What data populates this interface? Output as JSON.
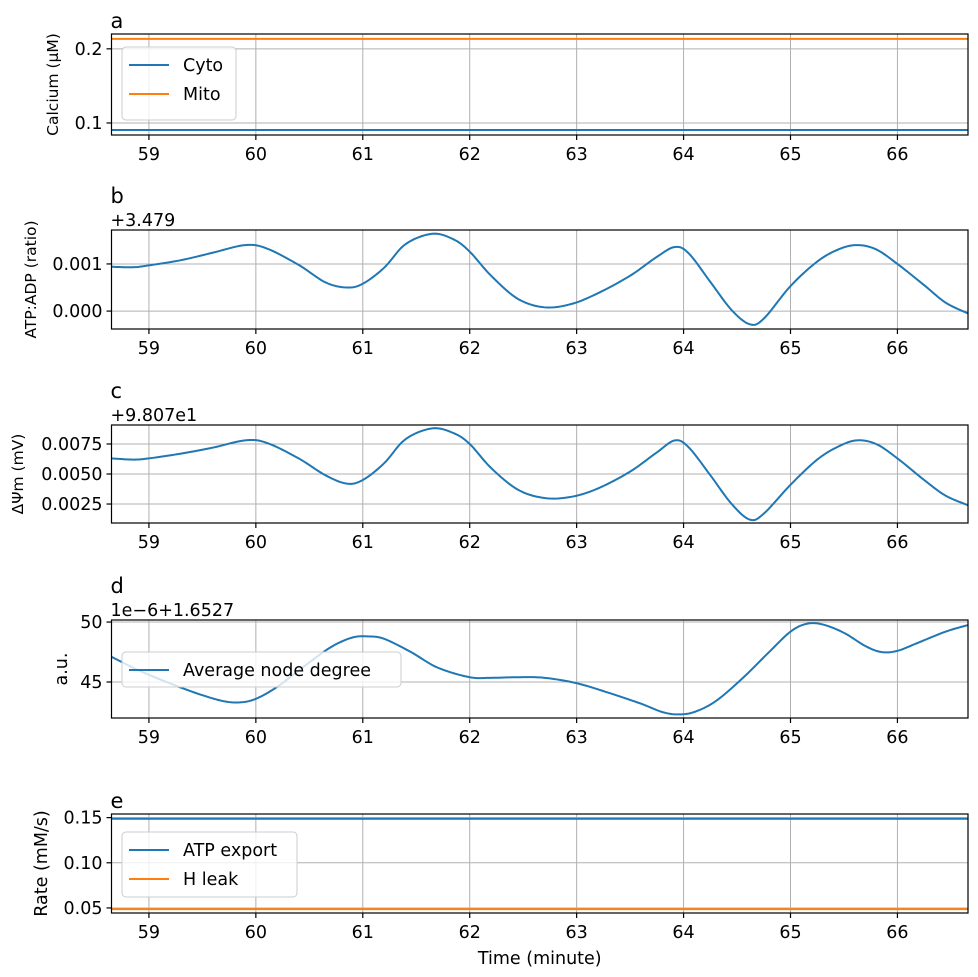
{
  "chart_data": [
    {
      "id": "a",
      "type": "line",
      "title": "a",
      "offset_text": "",
      "xlabel": "",
      "ylabel": "Calcium (μM)",
      "xlim": [
        58.65,
        66.66
      ],
      "ylim": [
        0.0838,
        0.22
      ],
      "xticks": [
        59,
        60,
        61,
        62,
        63,
        64,
        65,
        66
      ],
      "xtick_labels": [
        "59",
        "60",
        "61",
        "62",
        "63",
        "64",
        "65",
        "66"
      ],
      "yticks": [
        0.1,
        0.2
      ],
      "ytick_labels": [
        "0.1",
        "0.2"
      ],
      "grid": true,
      "legend": {
        "placement": "upper-left",
        "entries": [
          "Cyto",
          "Mito"
        ]
      },
      "series": [
        {
          "name": "Cyto",
          "color": "#1f77b4",
          "x": [
            58.65,
            66.66
          ],
          "y": [
            0.0905,
            0.0905
          ]
        },
        {
          "name": "Mito",
          "color": "#ff7f0e",
          "x": [
            58.65,
            66.66
          ],
          "y": [
            0.2135,
            0.2135
          ]
        }
      ]
    },
    {
      "id": "b",
      "type": "line",
      "title": "b",
      "offset_text": "+3.479",
      "xlabel": "",
      "ylabel": "ATP:ADP (ratio)",
      "xlim": [
        58.65,
        66.66
      ],
      "ylim": [
        -0.00038,
        0.00172
      ],
      "xticks": [
        59,
        60,
        61,
        62,
        63,
        64,
        65,
        66
      ],
      "xtick_labels": [
        "59",
        "60",
        "61",
        "62",
        "63",
        "64",
        "65",
        "66"
      ],
      "yticks": [
        0.0,
        0.001
      ],
      "ytick_labels": [
        "0.000",
        "0.001"
      ],
      "grid": true,
      "legend": null,
      "series": [
        {
          "name": "ATP:ADP",
          "color": "#1f77b4",
          "x": [
            58.65,
            58.85,
            59.0,
            59.3,
            59.6,
            59.9,
            60.1,
            60.4,
            60.65,
            60.85,
            61.0,
            61.2,
            61.4,
            61.65,
            61.85,
            62.0,
            62.2,
            62.45,
            62.7,
            62.95,
            63.2,
            63.5,
            63.75,
            63.92,
            64.05,
            64.25,
            64.45,
            64.62,
            64.75,
            65.0,
            65.25,
            65.45,
            65.62,
            65.8,
            66.0,
            66.25,
            66.45,
            66.66
          ],
          "y": [
            0.00094,
            0.00093,
            0.00097,
            0.00108,
            0.00124,
            0.0014,
            0.00133,
            0.00098,
            0.00061,
            0.0005,
            0.00058,
            0.00092,
            0.00142,
            0.00164,
            0.00152,
            0.00126,
            0.00075,
            0.00026,
            8e-05,
            0.00015,
            0.00038,
            0.00075,
            0.00115,
            0.00136,
            0.00122,
            0.00062,
            2e-05,
            -0.00028,
            -0.00016,
            0.00053,
            0.00105,
            0.00131,
            0.0014,
            0.00131,
            0.001,
            0.00055,
            0.00018,
            -5e-05
          ]
        }
      ]
    },
    {
      "id": "c",
      "type": "line",
      "title": "c",
      "offset_text": "+9.807e1",
      "xlabel": "",
      "ylabel": "ΔΨm (mV)",
      "xlim": [
        58.65,
        66.66
      ],
      "ylim": [
        0.00092,
        0.00908
      ],
      "xticks": [
        59,
        60,
        61,
        62,
        63,
        64,
        65,
        66
      ],
      "xtick_labels": [
        "59",
        "60",
        "61",
        "62",
        "63",
        "64",
        "65",
        "66"
      ],
      "yticks": [
        0.0025,
        0.005,
        0.0075
      ],
      "ytick_labels": [
        "0.0025",
        "0.0050",
        "0.0075"
      ],
      "grid": true,
      "legend": null,
      "series": [
        {
          "name": "ΔΨm",
          "color": "#1f77b4",
          "x": [
            58.65,
            58.85,
            59.0,
            59.3,
            59.6,
            59.9,
            60.1,
            60.4,
            60.65,
            60.85,
            61.0,
            61.2,
            61.4,
            61.65,
            61.85,
            62.0,
            62.2,
            62.45,
            62.7,
            62.95,
            63.2,
            63.5,
            63.75,
            63.92,
            64.05,
            64.25,
            64.45,
            64.62,
            64.75,
            65.0,
            65.25,
            65.45,
            65.62,
            65.8,
            66.0,
            66.25,
            66.45,
            66.66
          ],
          "y": [
            0.0063,
            0.0062,
            0.0063,
            0.0067,
            0.0072,
            0.0078,
            0.0076,
            0.0063,
            0.0049,
            0.0042,
            0.0045,
            0.0059,
            0.0079,
            0.0088,
            0.0084,
            0.0075,
            0.0055,
            0.0037,
            0.003,
            0.0031,
            0.0038,
            0.0052,
            0.0068,
            0.0078,
            0.0072,
            0.0049,
            0.0025,
            0.0012,
            0.0017,
            0.0041,
            0.0062,
            0.0073,
            0.0078,
            0.0075,
            0.0063,
            0.0045,
            0.0032,
            0.0024
          ]
        }
      ]
    },
    {
      "id": "d",
      "type": "line",
      "title": "d",
      "offset_text": "1e−6+1.6527",
      "xlabel": "",
      "ylabel": "a.u.",
      "xlim": [
        58.65,
        66.66
      ],
      "ylim": [
        42.0,
        50.17
      ],
      "xticks": [
        59,
        60,
        61,
        62,
        63,
        64,
        65,
        66
      ],
      "xtick_labels": [
        "59",
        "60",
        "61",
        "62",
        "63",
        "64",
        "65",
        "66"
      ],
      "yticks": [
        45,
        50
      ],
      "ytick_labels": [
        "45",
        "50"
      ],
      "grid": true,
      "legend": {
        "placement": "center-left",
        "entries": [
          "Average node degree"
        ]
      },
      "series": [
        {
          "name": "Average node degree",
          "color": "#1f77b4",
          "x": [
            58.65,
            58.85,
            59.0,
            59.25,
            59.5,
            59.7,
            59.85,
            60.0,
            60.2,
            60.45,
            60.7,
            60.9,
            61.05,
            61.2,
            61.45,
            61.7,
            62.0,
            62.2,
            62.45,
            62.7,
            63.0,
            63.3,
            63.6,
            63.8,
            63.95,
            64.1,
            64.3,
            64.55,
            64.8,
            65.0,
            65.15,
            65.3,
            65.5,
            65.7,
            65.85,
            66.0,
            66.2,
            66.45,
            66.66
          ],
          "y": [
            47.1,
            46.2,
            45.6,
            44.7,
            43.9,
            43.4,
            43.3,
            43.6,
            44.6,
            46.3,
            47.9,
            48.7,
            48.8,
            48.6,
            47.5,
            46.2,
            45.4,
            45.35,
            45.4,
            45.35,
            44.9,
            44.1,
            43.2,
            42.5,
            42.3,
            42.5,
            43.4,
            45.3,
            47.5,
            49.2,
            49.85,
            49.8,
            49.1,
            48.0,
            47.5,
            47.6,
            48.3,
            49.2,
            49.75
          ]
        }
      ]
    },
    {
      "id": "e",
      "type": "line",
      "title": "e",
      "offset_text": "",
      "xlabel": "Time (minute)",
      "ylabel": "Rate (mM/s)",
      "xlim": [
        58.65,
        66.66
      ],
      "ylim": [
        0.0444,
        0.154
      ],
      "xticks": [
        59,
        60,
        61,
        62,
        63,
        64,
        65,
        66
      ],
      "xtick_labels": [
        "59",
        "60",
        "61",
        "62",
        "63",
        "64",
        "65",
        "66"
      ],
      "yticks": [
        0.05,
        0.1,
        0.15
      ],
      "ytick_labels": [
        "0.05",
        "0.10",
        "0.15"
      ],
      "grid": true,
      "legend": {
        "placement": "upper-left",
        "entries": [
          "ATP export",
          "H leak"
        ]
      },
      "series": [
        {
          "name": "ATP export",
          "color": "#1f77b4",
          "x": [
            58.65,
            66.66
          ],
          "y": [
            0.1487,
            0.1487
          ]
        },
        {
          "name": "H leak",
          "color": "#ff7f0e",
          "x": [
            58.65,
            66.66
          ],
          "y": [
            0.0487,
            0.0487
          ]
        }
      ]
    }
  ]
}
